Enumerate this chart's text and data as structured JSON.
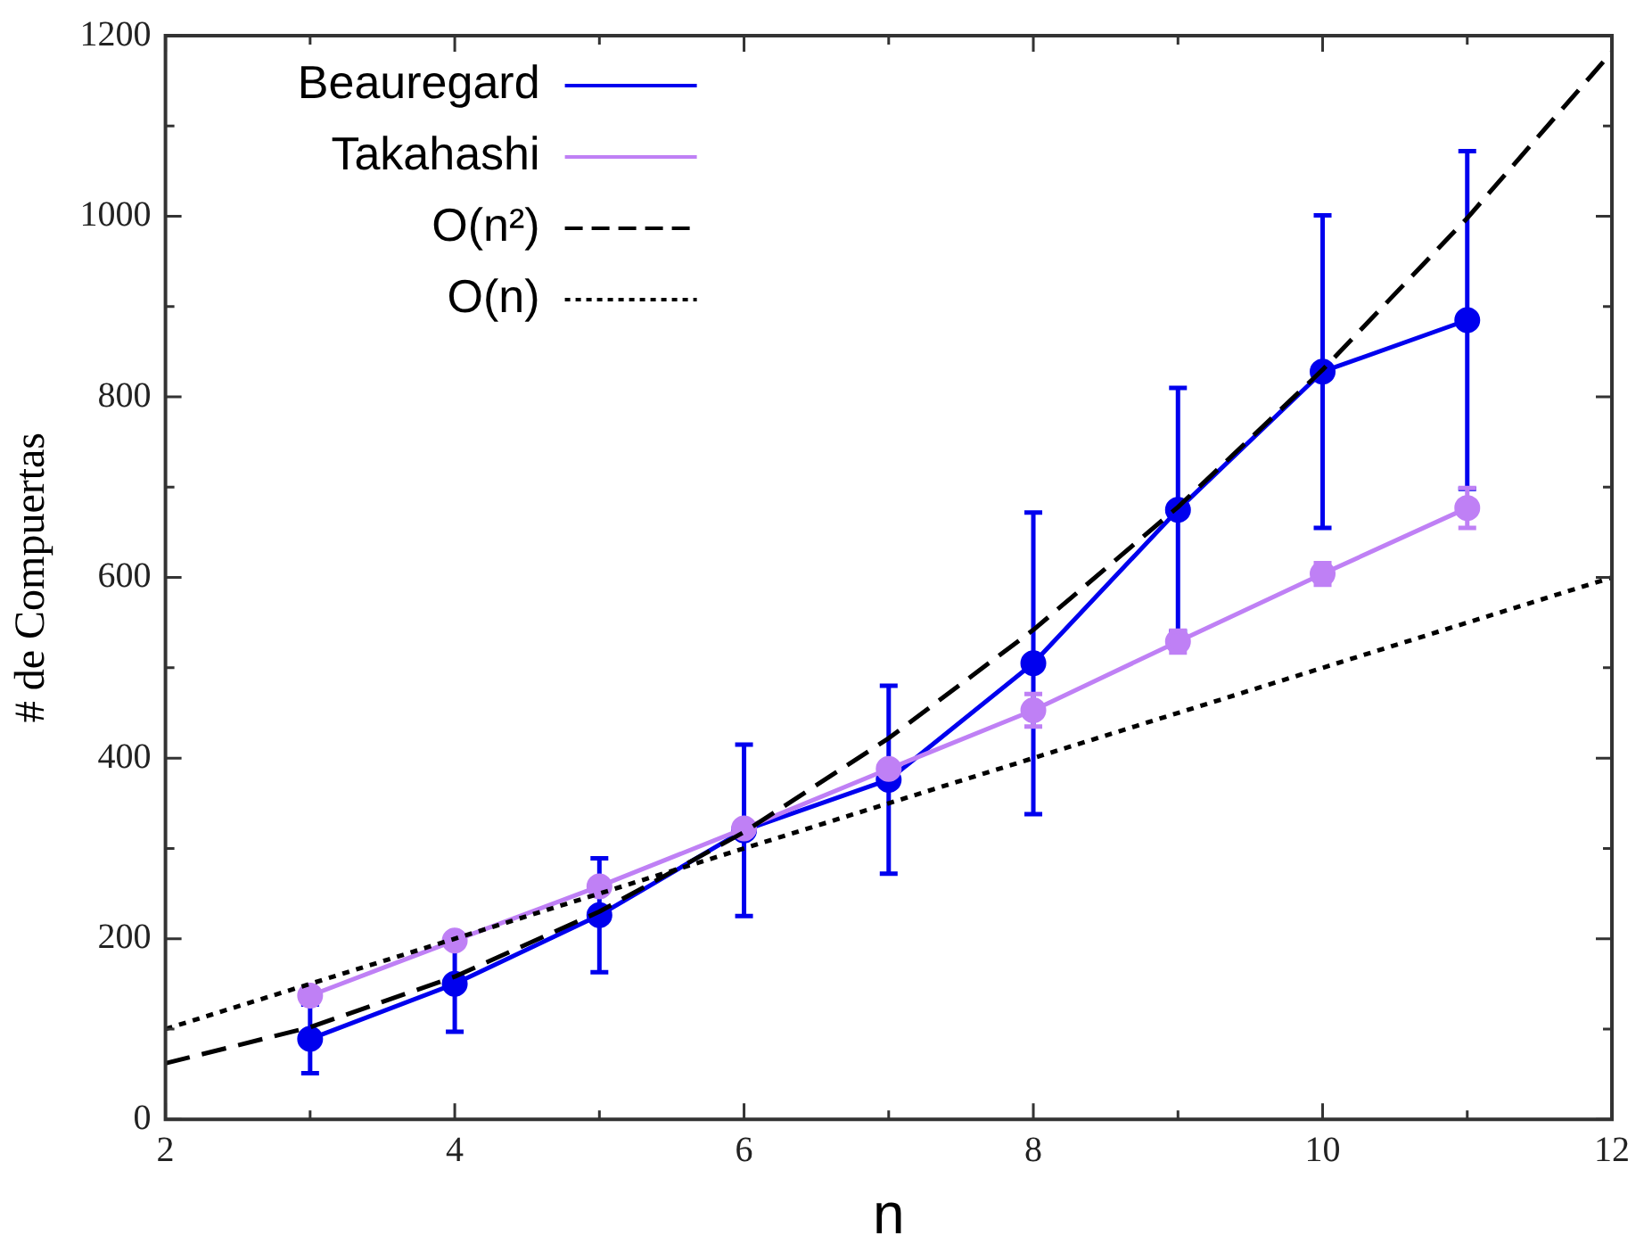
{
  "chart_data": {
    "type": "line",
    "xlabel": "n",
    "ylabel": "# de Compuertas",
    "xlim": [
      2,
      12
    ],
    "xticks": [
      2,
      4,
      6,
      8,
      10,
      12
    ],
    "ylim": [
      0,
      1200
    ],
    "yticks": [
      0,
      200,
      400,
      600,
      800,
      1000,
      1200
    ],
    "grid": false,
    "legend": "top left",
    "series": [
      {
        "name": "Beauregard",
        "color": "#0000ee",
        "marker": "circle",
        "line_style": "solid",
        "x": [
          3,
          4,
          5,
          6,
          7,
          8,
          9,
          10,
          11
        ],
        "values": [
          89,
          150,
          226,
          320,
          376,
          505,
          675,
          828,
          885
        ],
        "errors": [
          38,
          53,
          63,
          95,
          104,
          167,
          135,
          173,
          187
        ]
      },
      {
        "name": "Takahashi",
        "color": "#bf80f5",
        "marker": "circle",
        "line_style": "solid",
        "x": [
          3,
          4,
          5,
          6,
          7,
          8,
          9,
          10,
          11
        ],
        "values": [
          137,
          198,
          258,
          322,
          388,
          453,
          529,
          604,
          677
        ],
        "errors": [
          null,
          null,
          null,
          null,
          null,
          18,
          12,
          12,
          22
        ]
      },
      {
        "name": "O(n²)",
        "color": "#000000",
        "marker": "none",
        "line_style": "dashed",
        "x": [
          2,
          3,
          4,
          5,
          6,
          7,
          8,
          9,
          10,
          11,
          12
        ],
        "values": [
          62,
          102,
          158,
          230,
          318,
          422,
          542,
          678,
          830,
          998,
          1182
        ]
      },
      {
        "name": "O(n)",
        "color": "#000000",
        "marker": "none",
        "line_style": "dotted",
        "x": [
          2,
          12
        ],
        "values": [
          100,
          600
        ]
      }
    ]
  }
}
